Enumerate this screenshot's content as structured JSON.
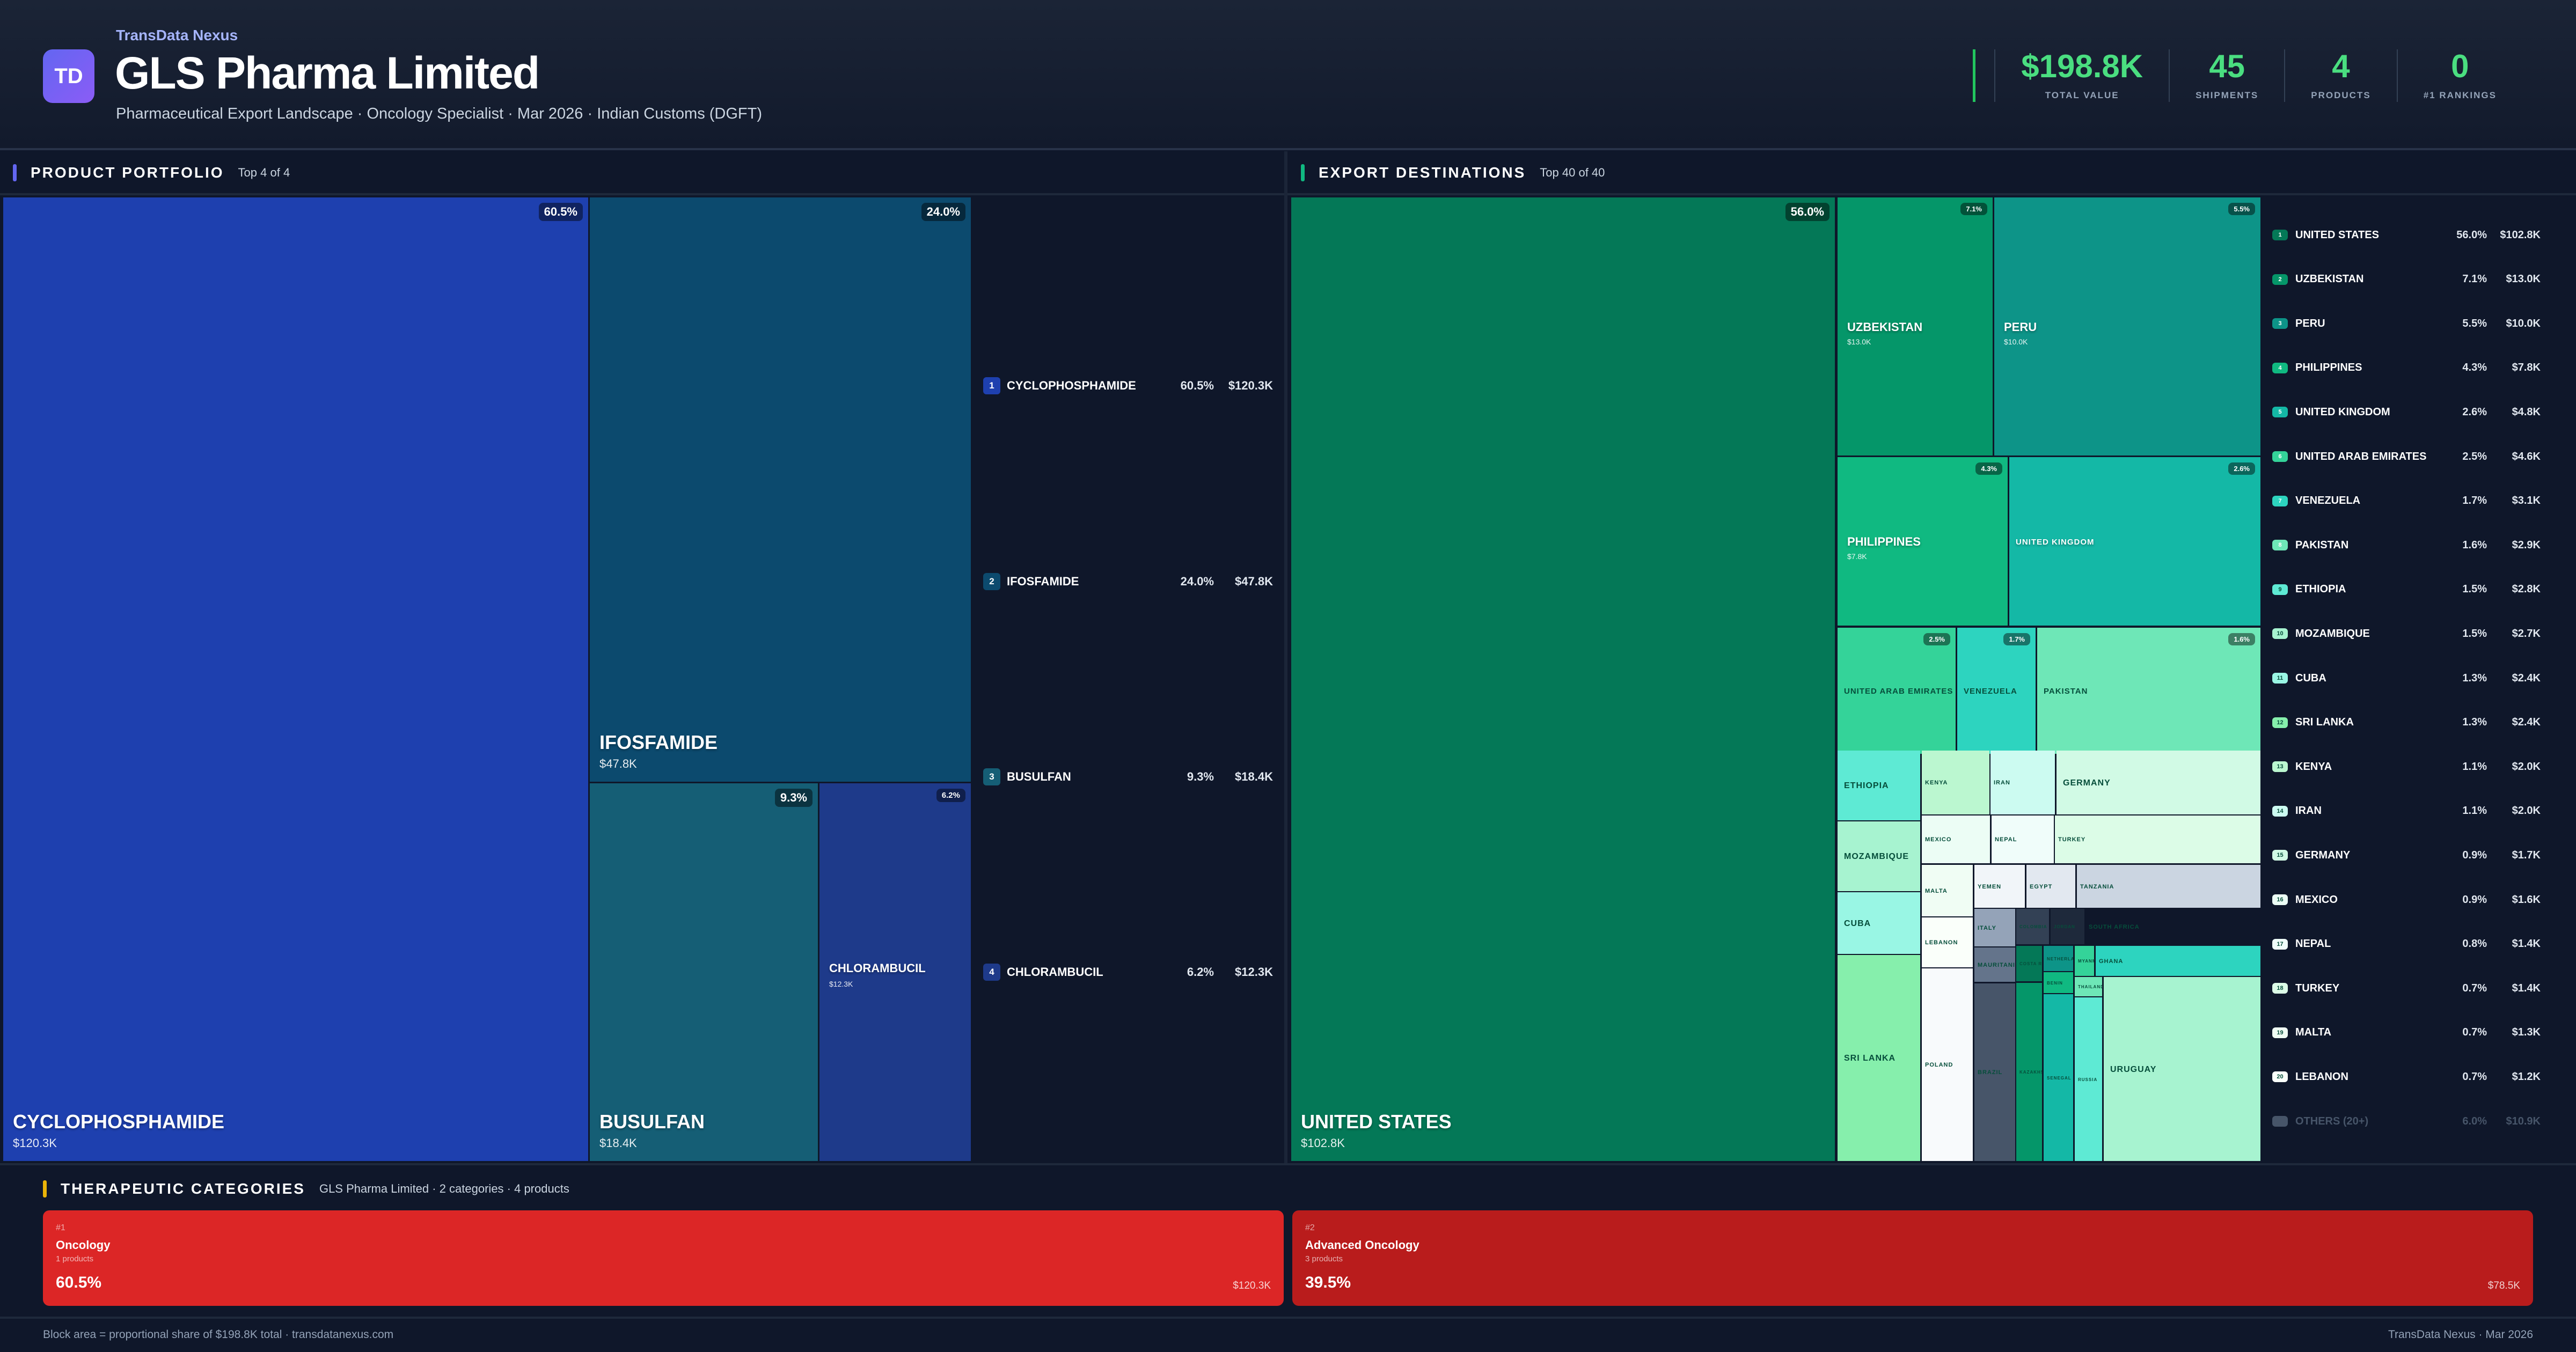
{
  "header": {
    "logo_text": "TD",
    "brand": "TransData Nexus",
    "title": "GLS Pharma Limited",
    "subtitle": "Pharmaceutical Export Landscape · Oncology Specialist · Mar 2026 · Indian Customs (DGFT)",
    "stats": [
      {
        "value": "$198.8K",
        "label": "TOTAL VALUE"
      },
      {
        "value": "45",
        "label": "SHIPMENTS"
      },
      {
        "value": "4",
        "label": "PRODUCTS"
      },
      {
        "value": "0",
        "label": "#1 RANKINGS"
      }
    ],
    "accent": "#4ade80"
  },
  "products": {
    "title": "PRODUCT PORTFOLIO",
    "subtitle": "Top 4 of 4",
    "accent": "#6366f1",
    "items": [
      {
        "rank": "1",
        "name": "CYCLOPHOSPHAMIDE",
        "pct": "60.5%",
        "value": "$120.3K",
        "color": "#1e40af"
      },
      {
        "rank": "2",
        "name": "IFOSFAMIDE",
        "pct": "24.0%",
        "value": "$47.8K",
        "color": "#0c4a6e"
      },
      {
        "rank": "3",
        "name": "BUSULFAN",
        "pct": "9.3%",
        "value": "$18.4K",
        "color": "#155e75"
      },
      {
        "rank": "4",
        "name": "CHLORAMBUCIL",
        "pct": "6.2%",
        "value": "$12.3K",
        "color": "#1e3a8a"
      }
    ]
  },
  "destinations": {
    "title": "EXPORT DESTINATIONS",
    "subtitle": "Top 40 of 40",
    "accent": "#10b981",
    "legend": [
      {
        "rank": "1",
        "name": "UNITED STATES",
        "pct": "56.0%",
        "value": "$102.8K",
        "color": "#047857"
      },
      {
        "rank": "2",
        "name": "UZBEKISTAN",
        "pct": "7.1%",
        "value": "$13.0K",
        "color": "#059669"
      },
      {
        "rank": "3",
        "name": "PERU",
        "pct": "5.5%",
        "value": "$10.0K",
        "color": "#0d9488"
      },
      {
        "rank": "4",
        "name": "PHILIPPINES",
        "pct": "4.3%",
        "value": "$7.8K",
        "color": "#10b981"
      },
      {
        "rank": "5",
        "name": "UNITED KINGDOM",
        "pct": "2.6%",
        "value": "$4.8K",
        "color": "#14b8a6"
      },
      {
        "rank": "6",
        "name": "UNITED ARAB EMIRATES",
        "pct": "2.5%",
        "value": "$4.6K",
        "color": "#34d399"
      },
      {
        "rank": "7",
        "name": "VENEZUELA",
        "pct": "1.7%",
        "value": "$3.1K",
        "color": "#2dd4bf"
      },
      {
        "rank": "8",
        "name": "PAKISTAN",
        "pct": "1.6%",
        "value": "$2.9K",
        "color": "#6ee7b7"
      },
      {
        "rank": "9",
        "name": "ETHIOPIA",
        "pct": "1.5%",
        "value": "$2.8K",
        "color": "#5eead4"
      },
      {
        "rank": "10",
        "name": "MOZAMBIQUE",
        "pct": "1.5%",
        "value": "$2.7K",
        "color": "#a7f3d0"
      },
      {
        "rank": "11",
        "name": "CUBA",
        "pct": "1.3%",
        "value": "$2.4K",
        "color": "#99f6e4"
      },
      {
        "rank": "12",
        "name": "SRI LANKA",
        "pct": "1.3%",
        "value": "$2.4K",
        "color": "#86efac"
      },
      {
        "rank": "13",
        "name": "KENYA",
        "pct": "1.1%",
        "value": "$2.0K",
        "color": "#bbf7d0"
      },
      {
        "rank": "14",
        "name": "IRAN",
        "pct": "1.1%",
        "value": "$2.0K",
        "color": "#ccfbf1"
      },
      {
        "rank": "15",
        "name": "GERMANY",
        "pct": "0.9%",
        "value": "$1.7K",
        "color": "#d1fae5"
      },
      {
        "rank": "16",
        "name": "MEXICO",
        "pct": "0.9%",
        "value": "$1.6K",
        "color": "#ecfdf5"
      },
      {
        "rank": "17",
        "name": "NEPAL",
        "pct": "0.8%",
        "value": "$1.4K",
        "color": "#f0fdfa"
      },
      {
        "rank": "18",
        "name": "TURKEY",
        "pct": "0.7%",
        "value": "$1.4K",
        "color": "#dcfce7"
      },
      {
        "rank": "19",
        "name": "MALTA",
        "pct": "0.7%",
        "value": "$1.3K",
        "color": "#f0fdf4"
      },
      {
        "rank": "20",
        "name": "LEBANON",
        "pct": "0.7%",
        "value": "$1.2K",
        "color": "#fafffa"
      }
    ],
    "others": {
      "name": "OTHERS (20+)",
      "pct": "6.0%",
      "value": "$10.9K",
      "color": "#475569"
    },
    "more_cells": [
      {
        "name": "POLAND",
        "color": "#f8fafc"
      },
      {
        "name": "YEMEN",
        "color": "#f1f5f9"
      },
      {
        "name": "EGYPT",
        "color": "#e2e8f0"
      },
      {
        "name": "TANZANIA",
        "color": "#cbd5e1"
      },
      {
        "name": "ITALY",
        "color": "#94a3b8"
      },
      {
        "name": "COLOMBIA",
        "color": "#334155"
      },
      {
        "name": "JORDAN",
        "color": "#1e293b"
      },
      {
        "name": "SOUTH AFRICA",
        "color": "#0f172a"
      },
      {
        "name": "MAURITANIA",
        "color": "#64748b"
      },
      {
        "name": "BRAZIL",
        "color": "#475569"
      },
      {
        "name": "COSTA RICA",
        "color": "#047857"
      },
      {
        "name": "KAZAKHSTAN",
        "color": "#059669"
      },
      {
        "name": "NETHERLANDS",
        "color": "#0d9488"
      },
      {
        "name": "BENIN",
        "color": "#10b981"
      },
      {
        "name": "SENEGAL",
        "color": "#14b8a6"
      },
      {
        "name": "MYANMAR",
        "color": "#34d399"
      },
      {
        "name": "GHANA",
        "color": "#2dd4bf"
      },
      {
        "name": "THAILAND",
        "color": "#6ee7b7"
      },
      {
        "name": "RUSSIA",
        "color": "#5eead4"
      },
      {
        "name": "URUGUAY",
        "color": "#a7f3d0"
      }
    ]
  },
  "categories": {
    "title": "THERAPEUTIC CATEGORIES",
    "subtitle": "GLS Pharma Limited · 2 categories · 4 products",
    "accent": "#eab308",
    "items": [
      {
        "rank": "#1",
        "name": "Oncology",
        "products": "1 products",
        "pct": "60.5%",
        "value": "$120.3K",
        "color": "#dc2626"
      },
      {
        "rank": "#2",
        "name": "Advanced Oncology",
        "products": "3 products",
        "pct": "39.5%",
        "value": "$78.5K",
        "color": "#b91c1c"
      }
    ]
  },
  "footer": {
    "left": "Block area = proportional share of $198.8K total · transdatanexus.com",
    "right": "TransData Nexus · Mar 2026"
  },
  "chart_data": [
    {
      "type": "treemap",
      "title": "PRODUCT PORTFOLIO",
      "categories": [
        "CYCLOPHOSPHAMIDE",
        "IFOSFAMIDE",
        "BUSULFAN",
        "CHLORAMBUCIL"
      ],
      "values": [
        120.3,
        47.8,
        18.4,
        12.3
      ],
      "unit": "$K",
      "shares_pct": [
        60.5,
        24.0,
        9.3,
        6.2
      ]
    },
    {
      "type": "treemap",
      "title": "EXPORT DESTINATIONS",
      "categories": [
        "UNITED STATES",
        "UZBEKISTAN",
        "PERU",
        "PHILIPPINES",
        "UNITED KINGDOM",
        "UNITED ARAB EMIRATES",
        "VENEZUELA",
        "PAKISTAN",
        "ETHIOPIA",
        "MOZAMBIQUE",
        "CUBA",
        "SRI LANKA",
        "KENYA",
        "IRAN",
        "GERMANY",
        "MEXICO",
        "NEPAL",
        "TURKEY",
        "MALTA",
        "LEBANON"
      ],
      "values": [
        102.8,
        13.0,
        10.0,
        7.8,
        4.8,
        4.6,
        3.1,
        2.9,
        2.8,
        2.7,
        2.4,
        2.4,
        2.0,
        2.0,
        1.7,
        1.6,
        1.4,
        1.4,
        1.3,
        1.2
      ],
      "unit": "$K",
      "shares_pct": [
        56.0,
        7.1,
        5.5,
        4.3,
        2.6,
        2.5,
        1.7,
        1.6,
        1.5,
        1.5,
        1.3,
        1.3,
        1.1,
        1.1,
        0.9,
        0.9,
        0.8,
        0.7,
        0.7,
        0.7
      ]
    }
  ]
}
